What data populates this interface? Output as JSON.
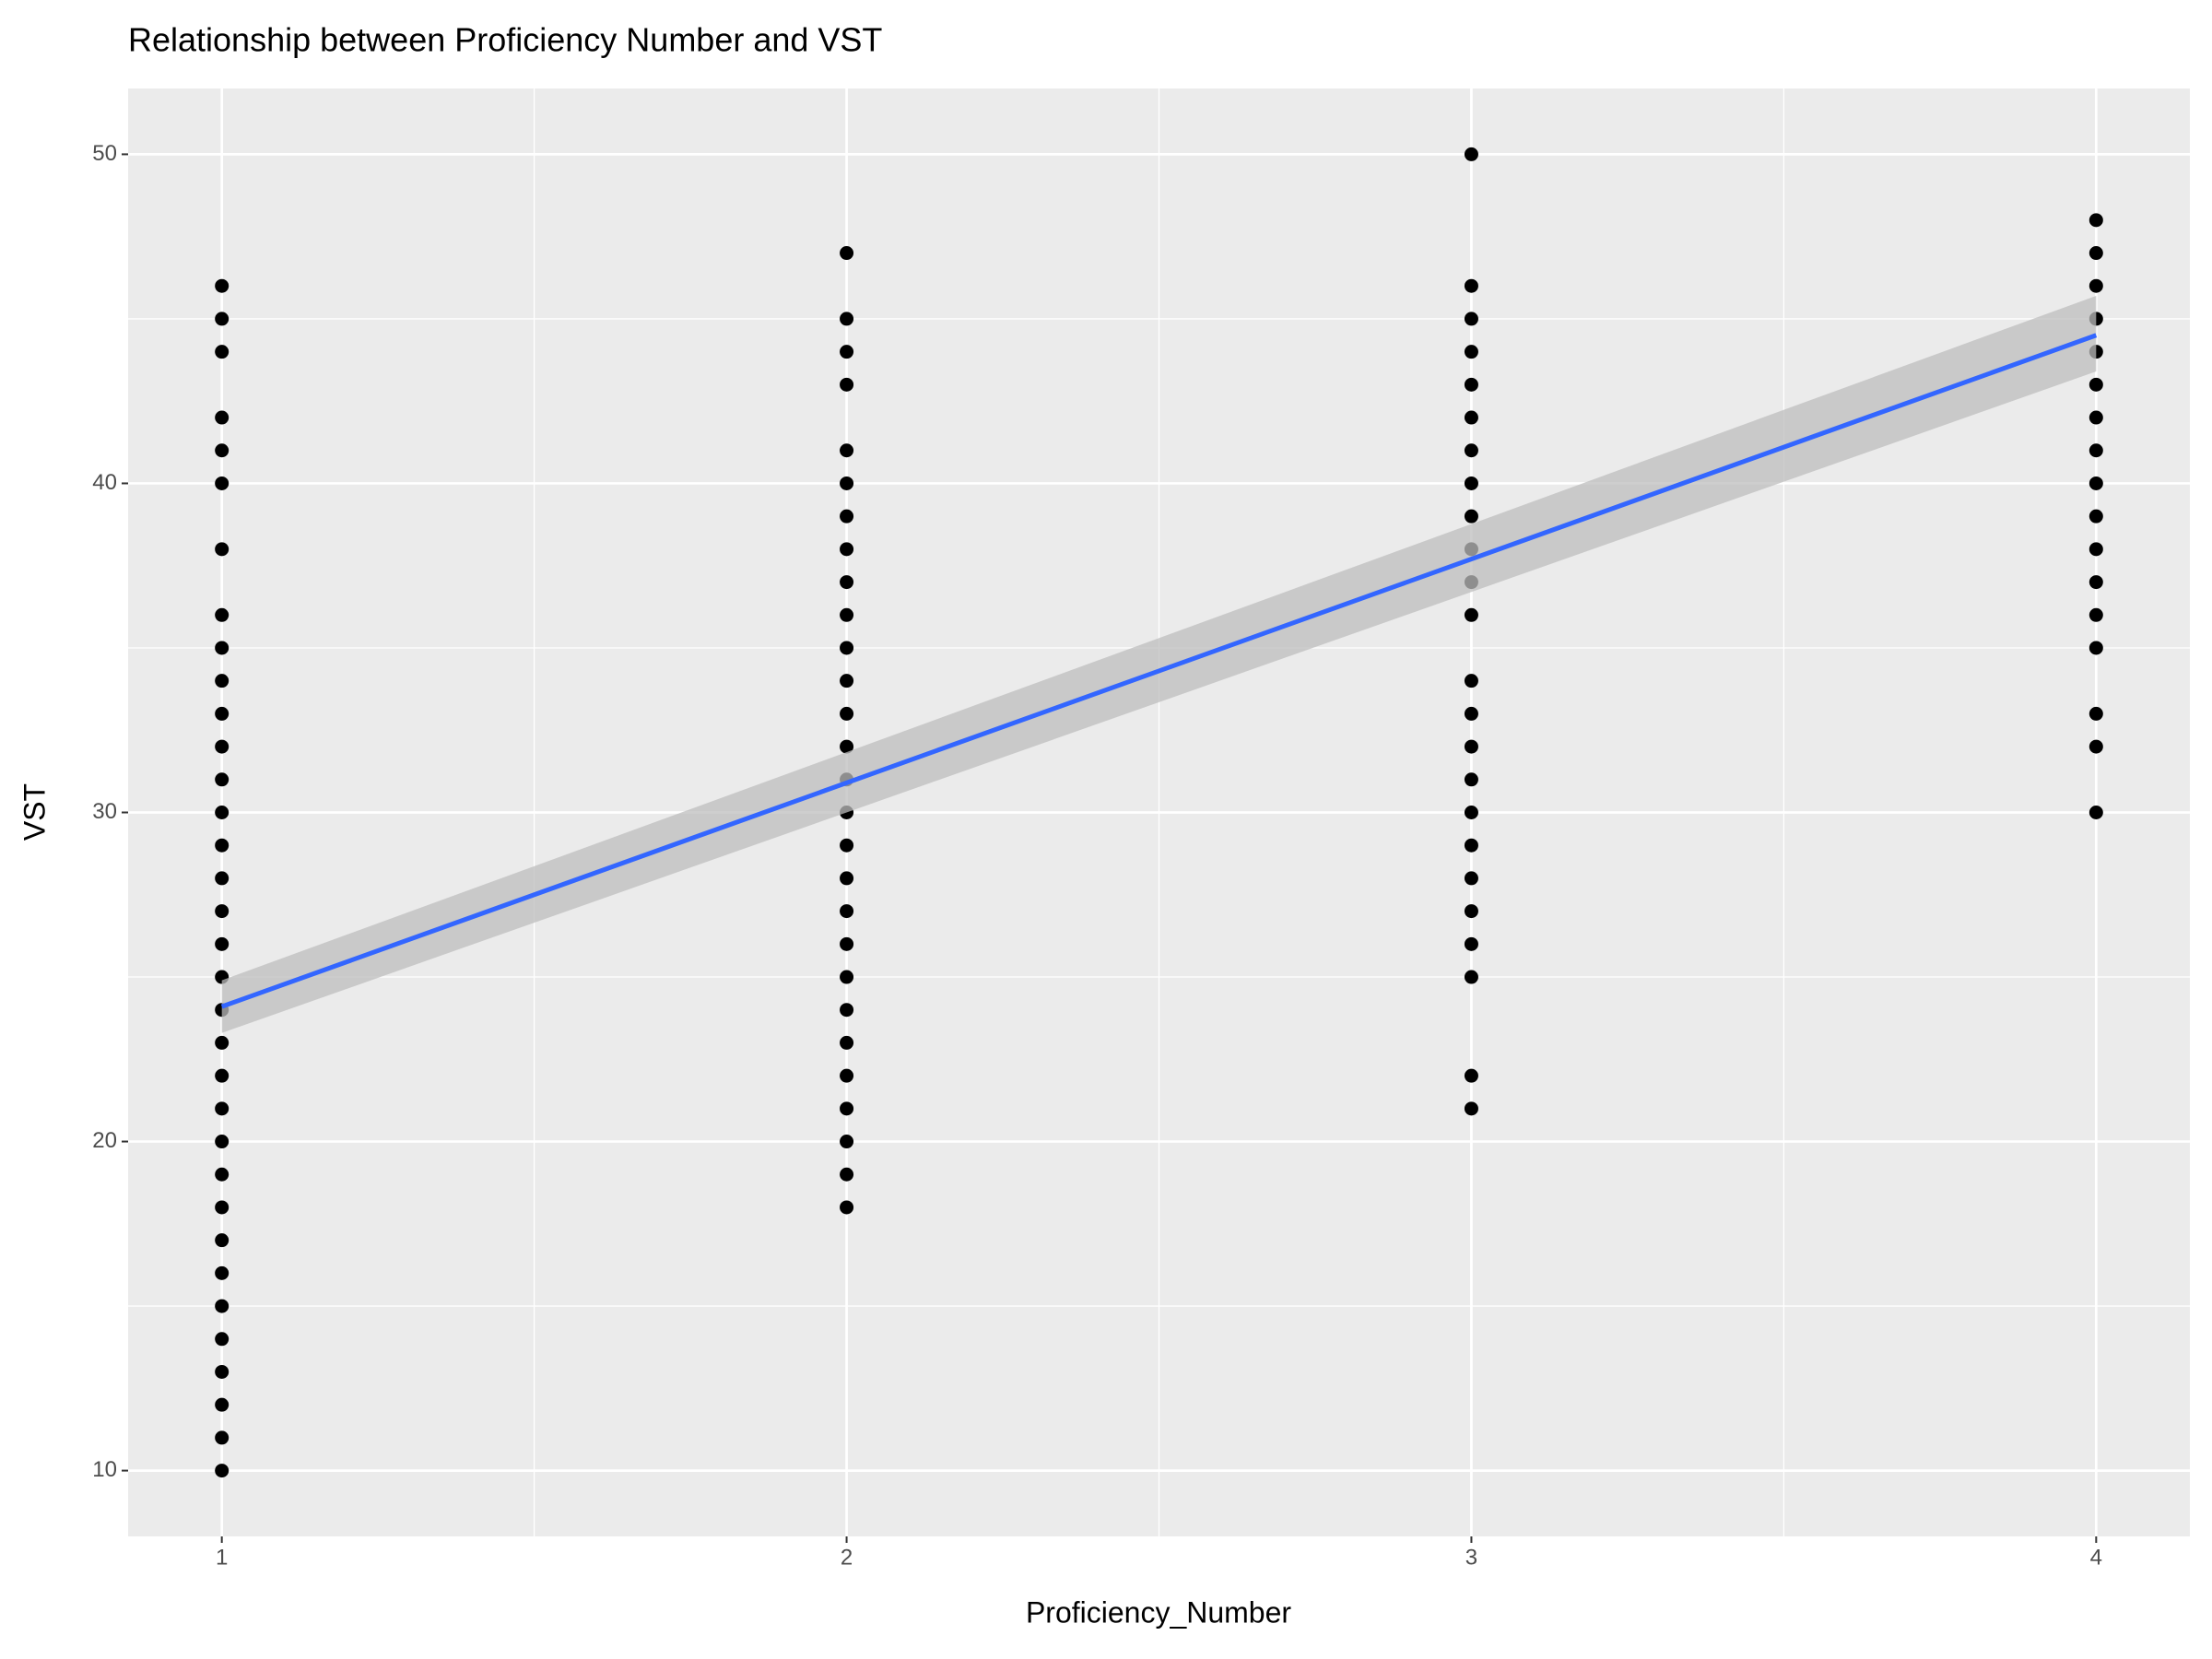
{
  "chart_data": {
    "type": "scatter",
    "title": "Relationship between Proficiency Number and VST",
    "x_label": "Proficiency_Number",
    "y_label": "VST",
    "xlim": [
      0.85,
      4.15
    ],
    "ylim": [
      8,
      52
    ],
    "xticks": [
      1,
      2,
      3,
      4
    ],
    "yticks": [
      10,
      20,
      30,
      40,
      50
    ],
    "x_minor_grid": [
      1.5,
      2.5,
      3.5
    ],
    "y_minor_grid": [
      15,
      25,
      35,
      45
    ],
    "grid": true,
    "points": {
      "color": "#000000",
      "x": [
        1,
        1,
        1,
        1,
        1,
        1,
        1,
        1,
        1,
        1,
        1,
        1,
        1,
        1,
        1,
        1,
        1,
        1,
        1,
        1,
        1,
        1,
        1,
        1,
        1,
        1,
        1,
        1,
        1,
        1,
        1,
        1,
        1,
        1,
        2,
        2,
        2,
        2,
        2,
        2,
        2,
        2,
        2,
        2,
        2,
        2,
        2,
        2,
        2,
        2,
        2,
        2,
        2,
        2,
        2,
        2,
        2,
        2,
        2,
        2,
        2,
        2,
        3,
        3,
        3,
        3,
        3,
        3,
        3,
        3,
        3,
        3,
        3,
        3,
        3,
        3,
        3,
        3,
        3,
        3,
        3,
        3,
        3,
        3,
        3,
        3,
        4,
        4,
        4,
        4,
        4,
        4,
        4,
        4,
        4,
        4,
        4,
        4,
        4,
        4,
        4,
        4,
        4
      ],
      "y": [
        46,
        45,
        44,
        42,
        41,
        40,
        38,
        36,
        35,
        34,
        33,
        32,
        31,
        30,
        29,
        28,
        27,
        26,
        25,
        24,
        23,
        22,
        21,
        20,
        19,
        18,
        17,
        16,
        15,
        14,
        13,
        12,
        11,
        10,
        47,
        45,
        44,
        43,
        41,
        40,
        39,
        38,
        37,
        36,
        35,
        34,
        33,
        32,
        31,
        30,
        29,
        28,
        27,
        26,
        25,
        24,
        23,
        22,
        21,
        20,
        19,
        18,
        50,
        46,
        45,
        44,
        43,
        42,
        41,
        40,
        39,
        38,
        37,
        36,
        34,
        33,
        32,
        31,
        30,
        29,
        28,
        27,
        26,
        25,
        22,
        21,
        48,
        47,
        46,
        45,
        44,
        43,
        42,
        41,
        40,
        39,
        38,
        37,
        36,
        35,
        33,
        32,
        30
      ]
    },
    "fit": {
      "color": "#3366ff",
      "band_color": "#bdbdbd",
      "x": [
        1,
        4
      ],
      "y": [
        24.1,
        44.5
      ],
      "lower": [
        23.3,
        43.4
      ],
      "upper": [
        24.9,
        45.7
      ]
    }
  }
}
